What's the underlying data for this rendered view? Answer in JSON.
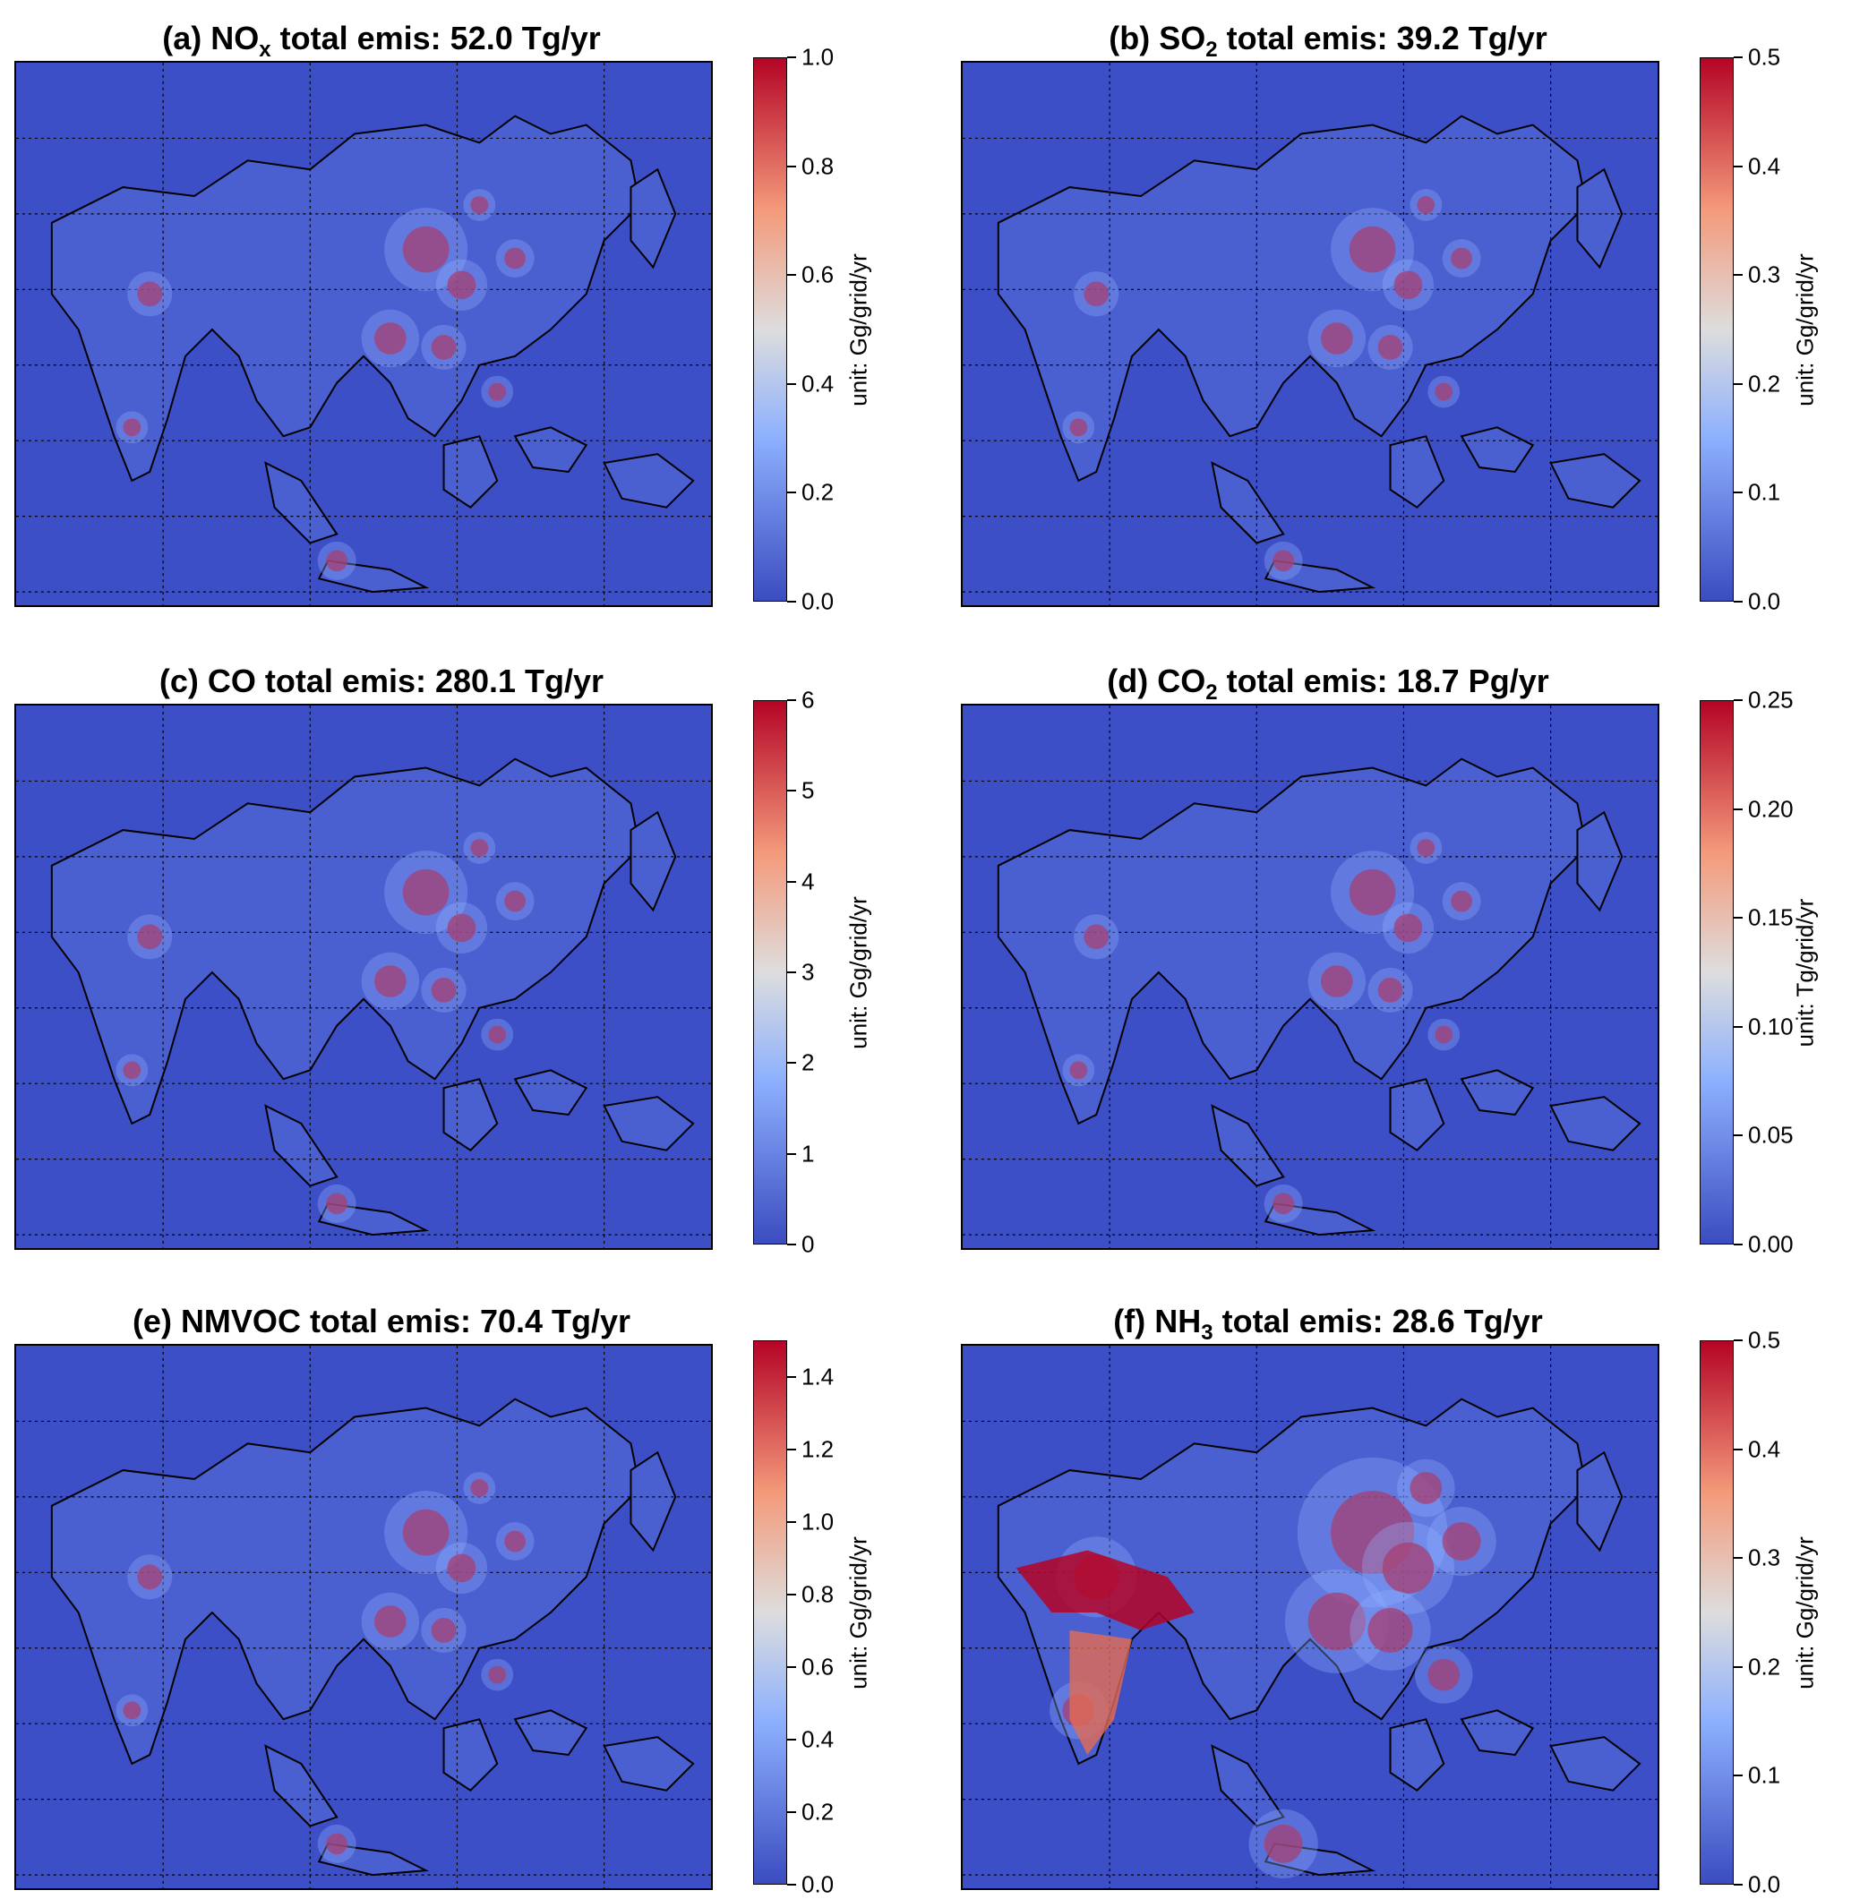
{
  "panels": [
    {
      "title_prefix": "(a) NO",
      "title_sub": "x",
      "title_suffix": " total emis: 52.0 Tg/yr",
      "ticks": [
        "0.0",
        "0.2",
        "0.4",
        "0.6",
        "0.8",
        "1.0"
      ],
      "unit": "unit: Gg/grid/yr"
    },
    {
      "title_prefix": "(b) SO",
      "title_sub": "2",
      "title_suffix": " total emis: 39.2 Tg/yr",
      "ticks": [
        "0.0",
        "0.1",
        "0.2",
        "0.3",
        "0.4",
        "0.5"
      ],
      "unit": "unit: Gg/grid/yr"
    },
    {
      "title_prefix": "(c) CO total emis: 280.1 Tg/yr",
      "title_sub": "",
      "title_suffix": "",
      "ticks": [
        "0",
        "1",
        "2",
        "3",
        "4",
        "5",
        "6"
      ],
      "unit": "unit: Gg/grid/yr"
    },
    {
      "title_prefix": "(d) CO",
      "title_sub": "2",
      "title_suffix": " total emis: 18.7 Pg/yr",
      "ticks": [
        "0.00",
        "0.05",
        "0.10",
        "0.15",
        "0.20",
        "0.25"
      ],
      "unit": "unit: Tg/grid/yr"
    },
    {
      "title_prefix": "(e) NMVOC total emis: 70.4 Tg/yr",
      "title_sub": "",
      "title_suffix": "",
      "ticks": [
        "0.0",
        "0.2",
        "0.4",
        "0.6",
        "0.8",
        "1.0",
        "1.2",
        "1.4"
      ],
      "tick_max": 1.5,
      "unit": "unit: Gg/grid/yr"
    },
    {
      "title_prefix": "(f) NH",
      "title_sub": "3",
      "title_suffix": " total emis: 28.6 Tg/yr",
      "ticks": [
        "0.0",
        "0.1",
        "0.2",
        "0.3",
        "0.4",
        "0.5"
      ],
      "unit": "unit: Gg/grid/yr"
    }
  ],
  "colors": {
    "low": "#3b4cc0",
    "mid": "#dddddd",
    "high": "#b40426",
    "ocean": "#3c4fc6"
  }
}
